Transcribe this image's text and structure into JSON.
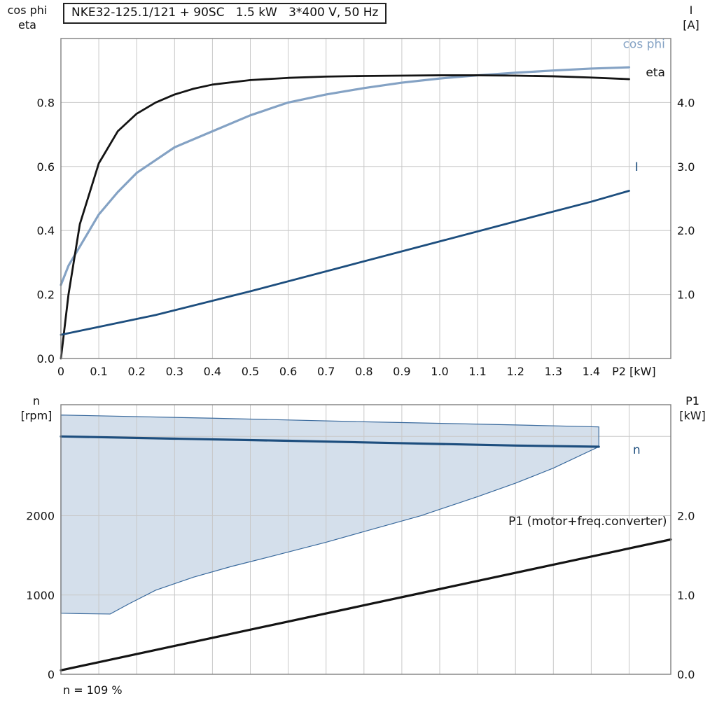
{
  "title": "NKE32-125.1/121 + 90SC   1.5 kW   3*400 V, 50 Hz",
  "annotation": "n = 109 %",
  "axis_titles": {
    "top_left_line1": "cos phi",
    "top_left_line2": "eta",
    "top_right_line1": "I",
    "top_right_line2": "[A]",
    "bottom_left_line1": "n",
    "bottom_left_line2": "[rpm]",
    "bottom_right_line1": "P1",
    "bottom_right_line2": "[kW]"
  },
  "colors": {
    "cos_phi": "#84a2c4",
    "eta": "#141414",
    "current": "#1d4e7e",
    "speed": "#1d4e7e",
    "p1": "#141414",
    "envelope_fill": "#ccd9e8",
    "envelope_stroke": "#3a6a9d",
    "grid": "#c8c8c8",
    "frame": "#7f7f7f",
    "background": "#ffffff"
  },
  "chart_data": [
    {
      "type": "line",
      "name": "electrical-curves",
      "x_domain": [
        0,
        1.61
      ],
      "x_gridlines": [
        0.1,
        0.2,
        0.3,
        0.4,
        0.5,
        0.6,
        0.7,
        0.8,
        0.9,
        1.0,
        1.1,
        1.2,
        1.3,
        1.4,
        1.5
      ],
      "x_ticks": [
        {
          "v": 0,
          "label": "0"
        },
        {
          "v": 0.1,
          "label": "0.1"
        },
        {
          "v": 0.2,
          "label": "0.2"
        },
        {
          "v": 0.3,
          "label": "0.3"
        },
        {
          "v": 0.4,
          "label": "0.4"
        },
        {
          "v": 0.5,
          "label": "0.5"
        },
        {
          "v": 0.6,
          "label": "0.6"
        },
        {
          "v": 0.7,
          "label": "0.7"
        },
        {
          "v": 0.8,
          "label": "0.8"
        },
        {
          "v": 0.9,
          "label": "0.9"
        },
        {
          "v": 1.0,
          "label": "1.0"
        },
        {
          "v": 1.1,
          "label": "1.1"
        },
        {
          "v": 1.2,
          "label": "1.2"
        },
        {
          "v": 1.3,
          "label": "1.3"
        },
        {
          "v": 1.4,
          "label": "1.4"
        }
      ],
      "x_axis_label": {
        "text": "P2 [kW]",
        "x": 1.455
      },
      "y_left": {
        "label": "cos phi / eta",
        "domain": [
          0,
          1.0
        ],
        "gridlines": [
          0.2,
          0.4,
          0.6,
          0.8
        ],
        "ticks": [
          {
            "v": 0,
            "label": "0.0"
          },
          {
            "v": 0.2,
            "label": "0.2"
          },
          {
            "v": 0.4,
            "label": "0.4"
          },
          {
            "v": 0.6,
            "label": "0.6"
          },
          {
            "v": 0.8,
            "label": "0.8"
          }
        ]
      },
      "y_right": {
        "label": "I [A]",
        "domain": [
          0,
          5.0
        ],
        "ticks": [
          {
            "v": 1.0,
            "label": "1.0"
          },
          {
            "v": 2.0,
            "label": "2.0"
          },
          {
            "v": 3.0,
            "label": "3.0"
          },
          {
            "v": 4.0,
            "label": "4.0"
          }
        ]
      },
      "series": [
        {
          "id": "cos-phi",
          "name": "cos phi",
          "axis": "left",
          "color": "#84a2c4",
          "width": 3.2,
          "x": [
            0,
            0.02,
            0.05,
            0.1,
            0.15,
            0.2,
            0.25,
            0.3,
            0.4,
            0.5,
            0.6,
            0.7,
            0.8,
            0.9,
            1.0,
            1.1,
            1.2,
            1.3,
            1.4,
            1.5
          ],
          "y": [
            0.23,
            0.29,
            0.35,
            0.45,
            0.52,
            0.58,
            0.62,
            0.66,
            0.71,
            0.76,
            0.8,
            0.825,
            0.845,
            0.862,
            0.875,
            0.885,
            0.893,
            0.9,
            0.906,
            0.91
          ]
        },
        {
          "id": "eta",
          "name": "eta",
          "axis": "left",
          "color": "#141414",
          "width": 2.8,
          "x": [
            0,
            0.02,
            0.05,
            0.1,
            0.15,
            0.2,
            0.25,
            0.3,
            0.35,
            0.4,
            0.5,
            0.6,
            0.7,
            0.8,
            0.9,
            1.0,
            1.1,
            1.2,
            1.3,
            1.4,
            1.5
          ],
          "y": [
            0,
            0.2,
            0.42,
            0.61,
            0.71,
            0.765,
            0.8,
            0.825,
            0.843,
            0.856,
            0.87,
            0.877,
            0.881,
            0.883,
            0.884,
            0.885,
            0.885,
            0.884,
            0.882,
            0.878,
            0.873
          ]
        },
        {
          "id": "current",
          "name": "I",
          "axis": "right",
          "color": "#1d4e7e",
          "width": 2.8,
          "x": [
            0,
            0.25,
            0.5,
            0.75,
            1.0,
            1.25,
            1.4,
            1.5
          ],
          "y": [
            0.37,
            0.68,
            1.05,
            1.44,
            1.83,
            2.22,
            2.45,
            2.62
          ]
        }
      ],
      "labels": [
        {
          "text": "cos phi",
          "x": 1.595,
          "y": 0.97,
          "axis": "left",
          "anchor": "end",
          "color": "#84a2c4"
        },
        {
          "text": "eta",
          "x": 1.595,
          "y": 0.882,
          "axis": "left",
          "anchor": "end",
          "color": "#141414"
        },
        {
          "text": "I",
          "x": 1.52,
          "y": 2.93,
          "axis": "right",
          "anchor": "middle",
          "color": "#1d4e7e"
        }
      ]
    },
    {
      "type": "line",
      "name": "speed-and-power",
      "x_domain": [
        0,
        1.61
      ],
      "x_gridlines": [
        0.1,
        0.2,
        0.3,
        0.4,
        0.5,
        0.6,
        0.7,
        0.8,
        0.9,
        1.0,
        1.1,
        1.2,
        1.3,
        1.4,
        1.5
      ],
      "x_ticks": [],
      "y_left": {
        "label": "n [rpm]",
        "domain": [
          0,
          3400
        ],
        "gridlines": [
          1000,
          2000,
          3000
        ],
        "ticks": [
          {
            "v": 0,
            "label": "0"
          },
          {
            "v": 1000,
            "label": "1000"
          },
          {
            "v": 2000,
            "label": "2000"
          }
        ]
      },
      "y_right": {
        "label": "P1 [kW]",
        "domain": [
          0,
          3.4
        ],
        "ticks": [
          {
            "v": 0,
            "label": "0.0"
          },
          {
            "v": 1.0,
            "label": "1.0"
          },
          {
            "v": 2.0,
            "label": "2.0"
          }
        ]
      },
      "polygons": [
        {
          "name": "speed-control-envelope",
          "fill": "#ccd9e8",
          "fill_opacity": 0.85,
          "stroke": "#3a6a9d",
          "points": [
            [
              0,
              3270
            ],
            [
              0.4,
              3230
            ],
            [
              0.8,
              3185
            ],
            [
              1.2,
              3145
            ],
            [
              1.42,
              3120
            ],
            [
              1.42,
              2870
            ],
            [
              1.3,
              2600
            ],
            [
              1.2,
              2410
            ],
            [
              1.1,
              2240
            ],
            [
              0.95,
              2000
            ],
            [
              0.8,
              1800
            ],
            [
              0.7,
              1665
            ],
            [
              0.57,
              1505
            ],
            [
              0.45,
              1360
            ],
            [
              0.35,
              1225
            ],
            [
              0.25,
              1060
            ],
            [
              0.18,
              890
            ],
            [
              0.13,
              760
            ],
            [
              0.05,
              765
            ],
            [
              0,
              770
            ]
          ]
        }
      ],
      "series": [
        {
          "id": "speed",
          "name": "n",
          "axis": "left",
          "color": "#1d4e7e",
          "width": 3.2,
          "x": [
            0,
            0.3,
            0.6,
            0.9,
            1.2,
            1.42
          ],
          "y": [
            3000,
            2972,
            2945,
            2915,
            2885,
            2870
          ]
        },
        {
          "id": "p1",
          "name": "P1 (motor+freq.converter)",
          "axis": "right",
          "color": "#141414",
          "width": 3.2,
          "x": [
            0,
            0.4,
            0.8,
            1.2,
            1.61
          ],
          "y": [
            0.05,
            0.46,
            0.87,
            1.28,
            1.7
          ]
        }
      ],
      "labels": [
        {
          "text": "n",
          "x": 1.52,
          "y": 2780,
          "axis": "left",
          "anchor": "middle",
          "color": "#1d4e7e"
        },
        {
          "text": "P1 (motor+freq.converter)",
          "x": 1.6,
          "y": 1.88,
          "axis": "right",
          "anchor": "end",
          "color": "#141414"
        }
      ]
    }
  ]
}
